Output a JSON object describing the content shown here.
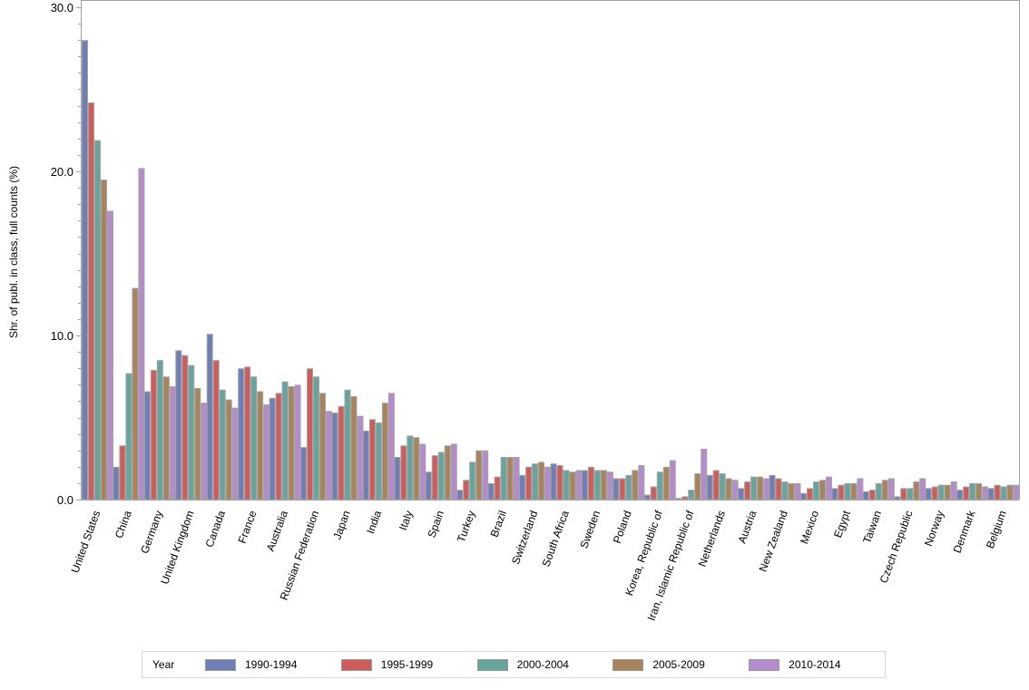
{
  "chart_data": {
    "type": "bar",
    "title": "",
    "xlabel": "",
    "ylabel": "Shr. of publ. in class, full counts (%)",
    "ylim": [
      0,
      30
    ],
    "yticks": [
      "0.0",
      "10.0",
      "20.0",
      "30.0"
    ],
    "grid": false,
    "legend_position": "bottom",
    "legend_title": "Year",
    "categories": [
      "United States",
      "China",
      "Germany",
      "United Kingdom",
      "Canada",
      "France",
      "Australia",
      "Russian Federation",
      "Japan",
      "India",
      "Italy",
      "Spain",
      "Turkey",
      "Brazil",
      "Switzerland",
      "South Africa",
      "Sweden",
      "Poland",
      "Korea, Republic of",
      "Iran, Islamic Republic of",
      "Netherlands",
      "Austria",
      "New Zealand",
      "Mexico",
      "Egypt",
      "Taiwan",
      "Czech Republic",
      "Norway",
      "Denmark",
      "Belgium"
    ],
    "series": [
      {
        "name": "1990-1994",
        "color": "#6f7fb5",
        "values": [
          28.0,
          2.0,
          6.6,
          9.1,
          10.1,
          8.0,
          6.2,
          3.2,
          5.3,
          4.2,
          2.6,
          1.7,
          0.6,
          1.0,
          1.5,
          2.2,
          1.8,
          1.3,
          0.3,
          0.1,
          1.5,
          0.7,
          1.5,
          0.4,
          0.7,
          0.5,
          0.2,
          0.7,
          0.6,
          0.7
        ]
      },
      {
        "name": "1995-1999",
        "color": "#d05b5b",
        "values": [
          24.2,
          3.3,
          7.9,
          8.8,
          8.5,
          8.1,
          6.5,
          8.0,
          5.7,
          4.9,
          3.3,
          2.7,
          1.2,
          1.4,
          2.0,
          2.1,
          2.0,
          1.3,
          0.8,
          0.2,
          1.8,
          1.1,
          1.3,
          0.7,
          0.9,
          0.6,
          0.7,
          0.8,
          0.8,
          0.9
        ]
      },
      {
        "name": "2000-2004",
        "color": "#66a59e",
        "values": [
          21.9,
          7.7,
          8.5,
          8.2,
          6.7,
          7.5,
          7.2,
          7.5,
          6.7,
          4.7,
          3.9,
          2.9,
          2.3,
          2.6,
          2.2,
          1.8,
          1.8,
          1.5,
          1.7,
          0.6,
          1.6,
          1.4,
          1.1,
          1.1,
          1.0,
          1.0,
          0.7,
          0.9,
          1.0,
          0.8
        ]
      },
      {
        "name": "2005-2009",
        "color": "#a8845c",
        "values": [
          19.5,
          12.9,
          7.5,
          6.8,
          6.1,
          6.6,
          6.9,
          6.5,
          6.3,
          5.9,
          3.8,
          3.3,
          3.0,
          2.6,
          2.3,
          1.7,
          1.8,
          1.8,
          2.0,
          1.6,
          1.3,
          1.4,
          1.0,
          1.2,
          1.0,
          1.2,
          1.1,
          0.9,
          1.0,
          0.9
        ]
      },
      {
        "name": "2010-2014",
        "color": "#b58ccb",
        "values": [
          17.6,
          20.2,
          6.9,
          5.9,
          5.6,
          5.8,
          7.0,
          5.4,
          5.1,
          6.5,
          3.4,
          3.4,
          3.0,
          2.6,
          2.0,
          1.8,
          1.7,
          2.1,
          2.4,
          3.1,
          1.2,
          1.3,
          1.0,
          1.4,
          1.3,
          1.3,
          1.3,
          1.1,
          0.8,
          0.9
        ]
      }
    ]
  },
  "legend": {
    "title": "Year",
    "items": [
      {
        "label": "1990-1994",
        "color": "#6f7fb5"
      },
      {
        "label": "1995-1999",
        "color": "#d05b5b"
      },
      {
        "label": "2000-2004",
        "color": "#66a59e"
      },
      {
        "label": "2005-2009",
        "color": "#a8845c"
      },
      {
        "label": "2010-2014",
        "color": "#b58ccb"
      }
    ]
  },
  "axis": {
    "y_label": "Shr. of publ. in class, full counts (%)"
  }
}
